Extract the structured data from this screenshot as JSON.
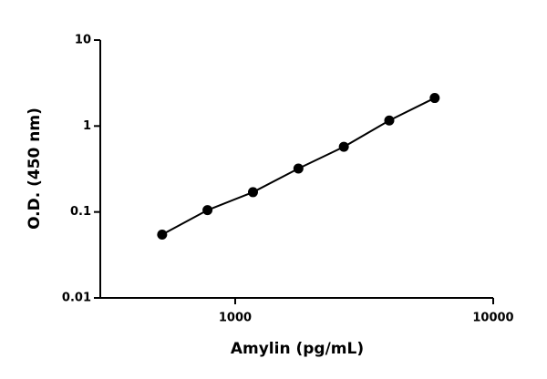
{
  "chart_data": {
    "type": "scatter",
    "x_label": "Amylin (pg/mL)",
    "y_label": "O.D. (450 nm)",
    "x": [
      521,
      781,
      1172,
      1758,
      2637,
      3955,
      5933
    ],
    "values": [
      0.0546,
      0.105,
      0.17,
      0.32,
      0.573,
      1.16,
      2.12
    ],
    "color": "#000000",
    "log_x": true,
    "log_y": true,
    "xlim": [
      300,
      10000
    ],
    "xticks": [
      1000,
      10000
    ],
    "ylim": [
      0.01,
      10
    ],
    "yticks": [
      0.01,
      0.1,
      1,
      10
    ]
  }
}
